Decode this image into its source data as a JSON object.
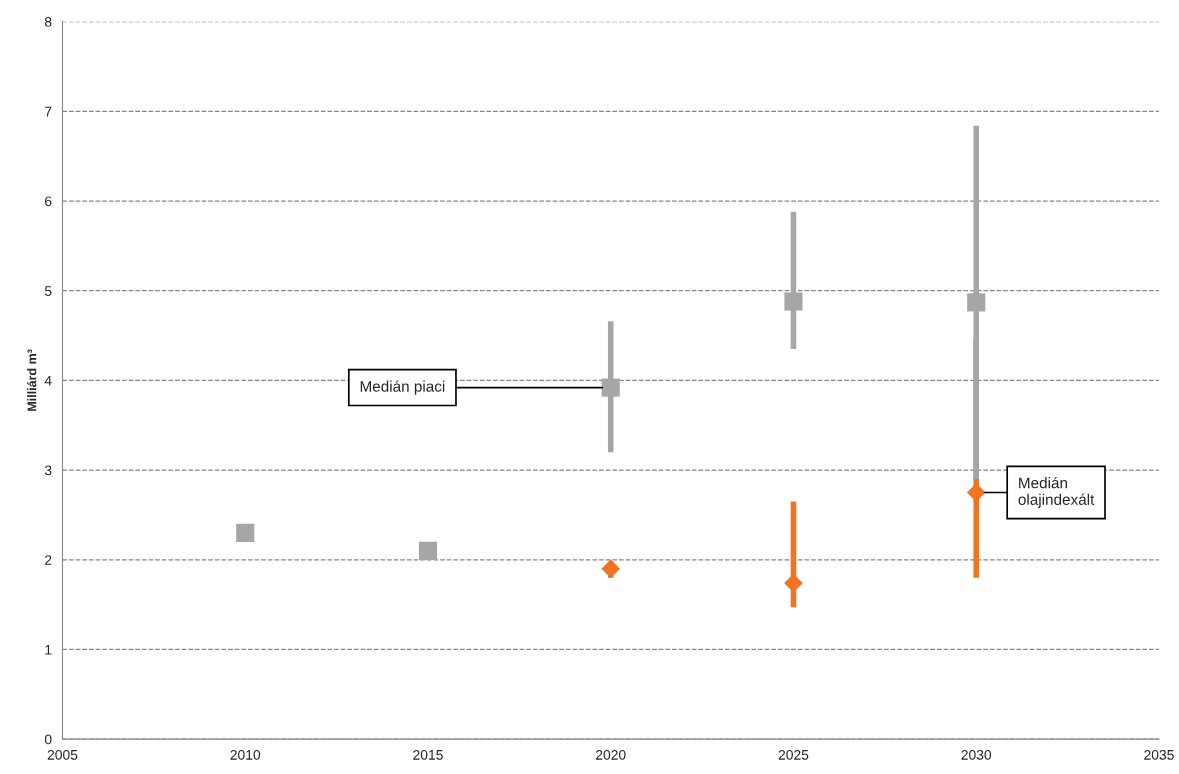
{
  "chart_data": {
    "type": "scatter",
    "ylabel": "Milliárd m³",
    "xlim": [
      2005,
      2035
    ],
    "xticks": [
      2005,
      2010,
      2015,
      2020,
      2025,
      2030,
      2035
    ],
    "ylim": [
      0,
      8
    ],
    "yticks": [
      0,
      1,
      2,
      3,
      4,
      5,
      6,
      7,
      8
    ],
    "grid": "y",
    "legend": false,
    "series": [
      {
        "color": "#a6a6a6",
        "marker": "square",
        "x": [
          2010,
          2015,
          2020,
          2025,
          2030
        ],
        "values": [
          2.3,
          2.1,
          3.92,
          4.88,
          4.87
        ],
        "errors": [
          null,
          null,
          [
            3.2,
            4.66
          ],
          [
            4.35,
            5.88
          ],
          [
            2.9,
            6.84
          ]
        ]
      },
      {
        "color": "#f47321",
        "marker": "diamond",
        "x": [
          2020,
          2025,
          2030
        ],
        "values": [
          1.9,
          1.74,
          2.75
        ],
        "errors": [
          [
            1.8,
            1.98
          ],
          [
            1.47,
            2.65
          ],
          [
            1.8,
            4.47
          ]
        ]
      }
    ],
    "annotations": [
      {
        "text": "Medián piaci",
        "x": 2020,
        "y": 3.92
      },
      {
        "text": "Medián\nolajindexált",
        "x": 2030,
        "y": 2.75
      }
    ]
  }
}
